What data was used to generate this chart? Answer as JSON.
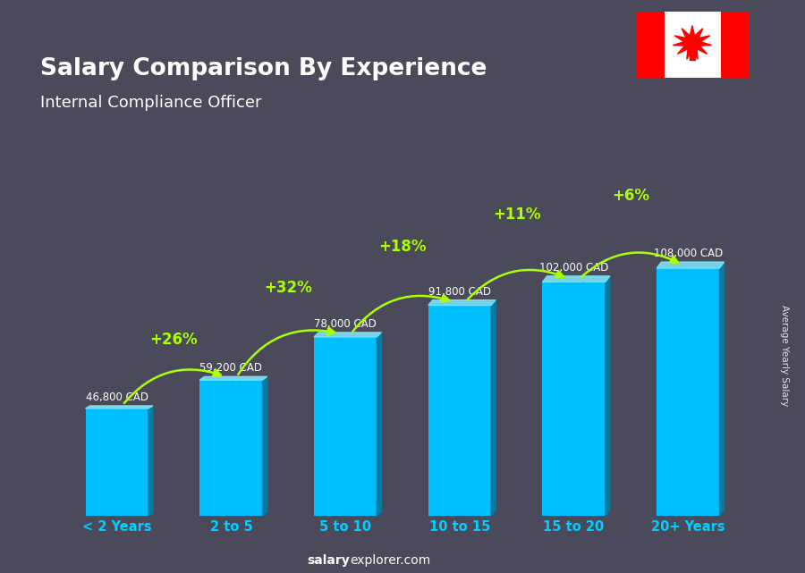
{
  "title": "Salary Comparison By Experience",
  "subtitle": "Internal Compliance Officer",
  "categories": [
    "< 2 Years",
    "2 to 5",
    "5 to 10",
    "10 to 15",
    "15 to 20",
    "20+ Years"
  ],
  "values": [
    46800,
    59200,
    78000,
    91800,
    102000,
    108000
  ],
  "value_labels": [
    "46,800 CAD",
    "59,200 CAD",
    "78,000 CAD",
    "91,800 CAD",
    "102,000 CAD",
    "108,000 CAD"
  ],
  "pct_changes": [
    "+26%",
    "+32%",
    "+18%",
    "+11%",
    "+6%"
  ],
  "bar_color": "#00BFFF",
  "bar_color_dark": "#0090C0",
  "bar_color_side": "#0080AA",
  "bg_color": "#4a4a5a",
  "title_color": "#FFFFFF",
  "subtitle_color": "#FFFFFF",
  "value_label_color": "#FFFFFF",
  "pct_color": "#AAFF00",
  "xlabel_color": "#00CFFF",
  "ylabel": "Average Yearly Salary",
  "footer_bold": "salary",
  "footer_normal": "explorer.com",
  "ylim": [
    0,
    145000
  ],
  "bar_width": 0.55
}
